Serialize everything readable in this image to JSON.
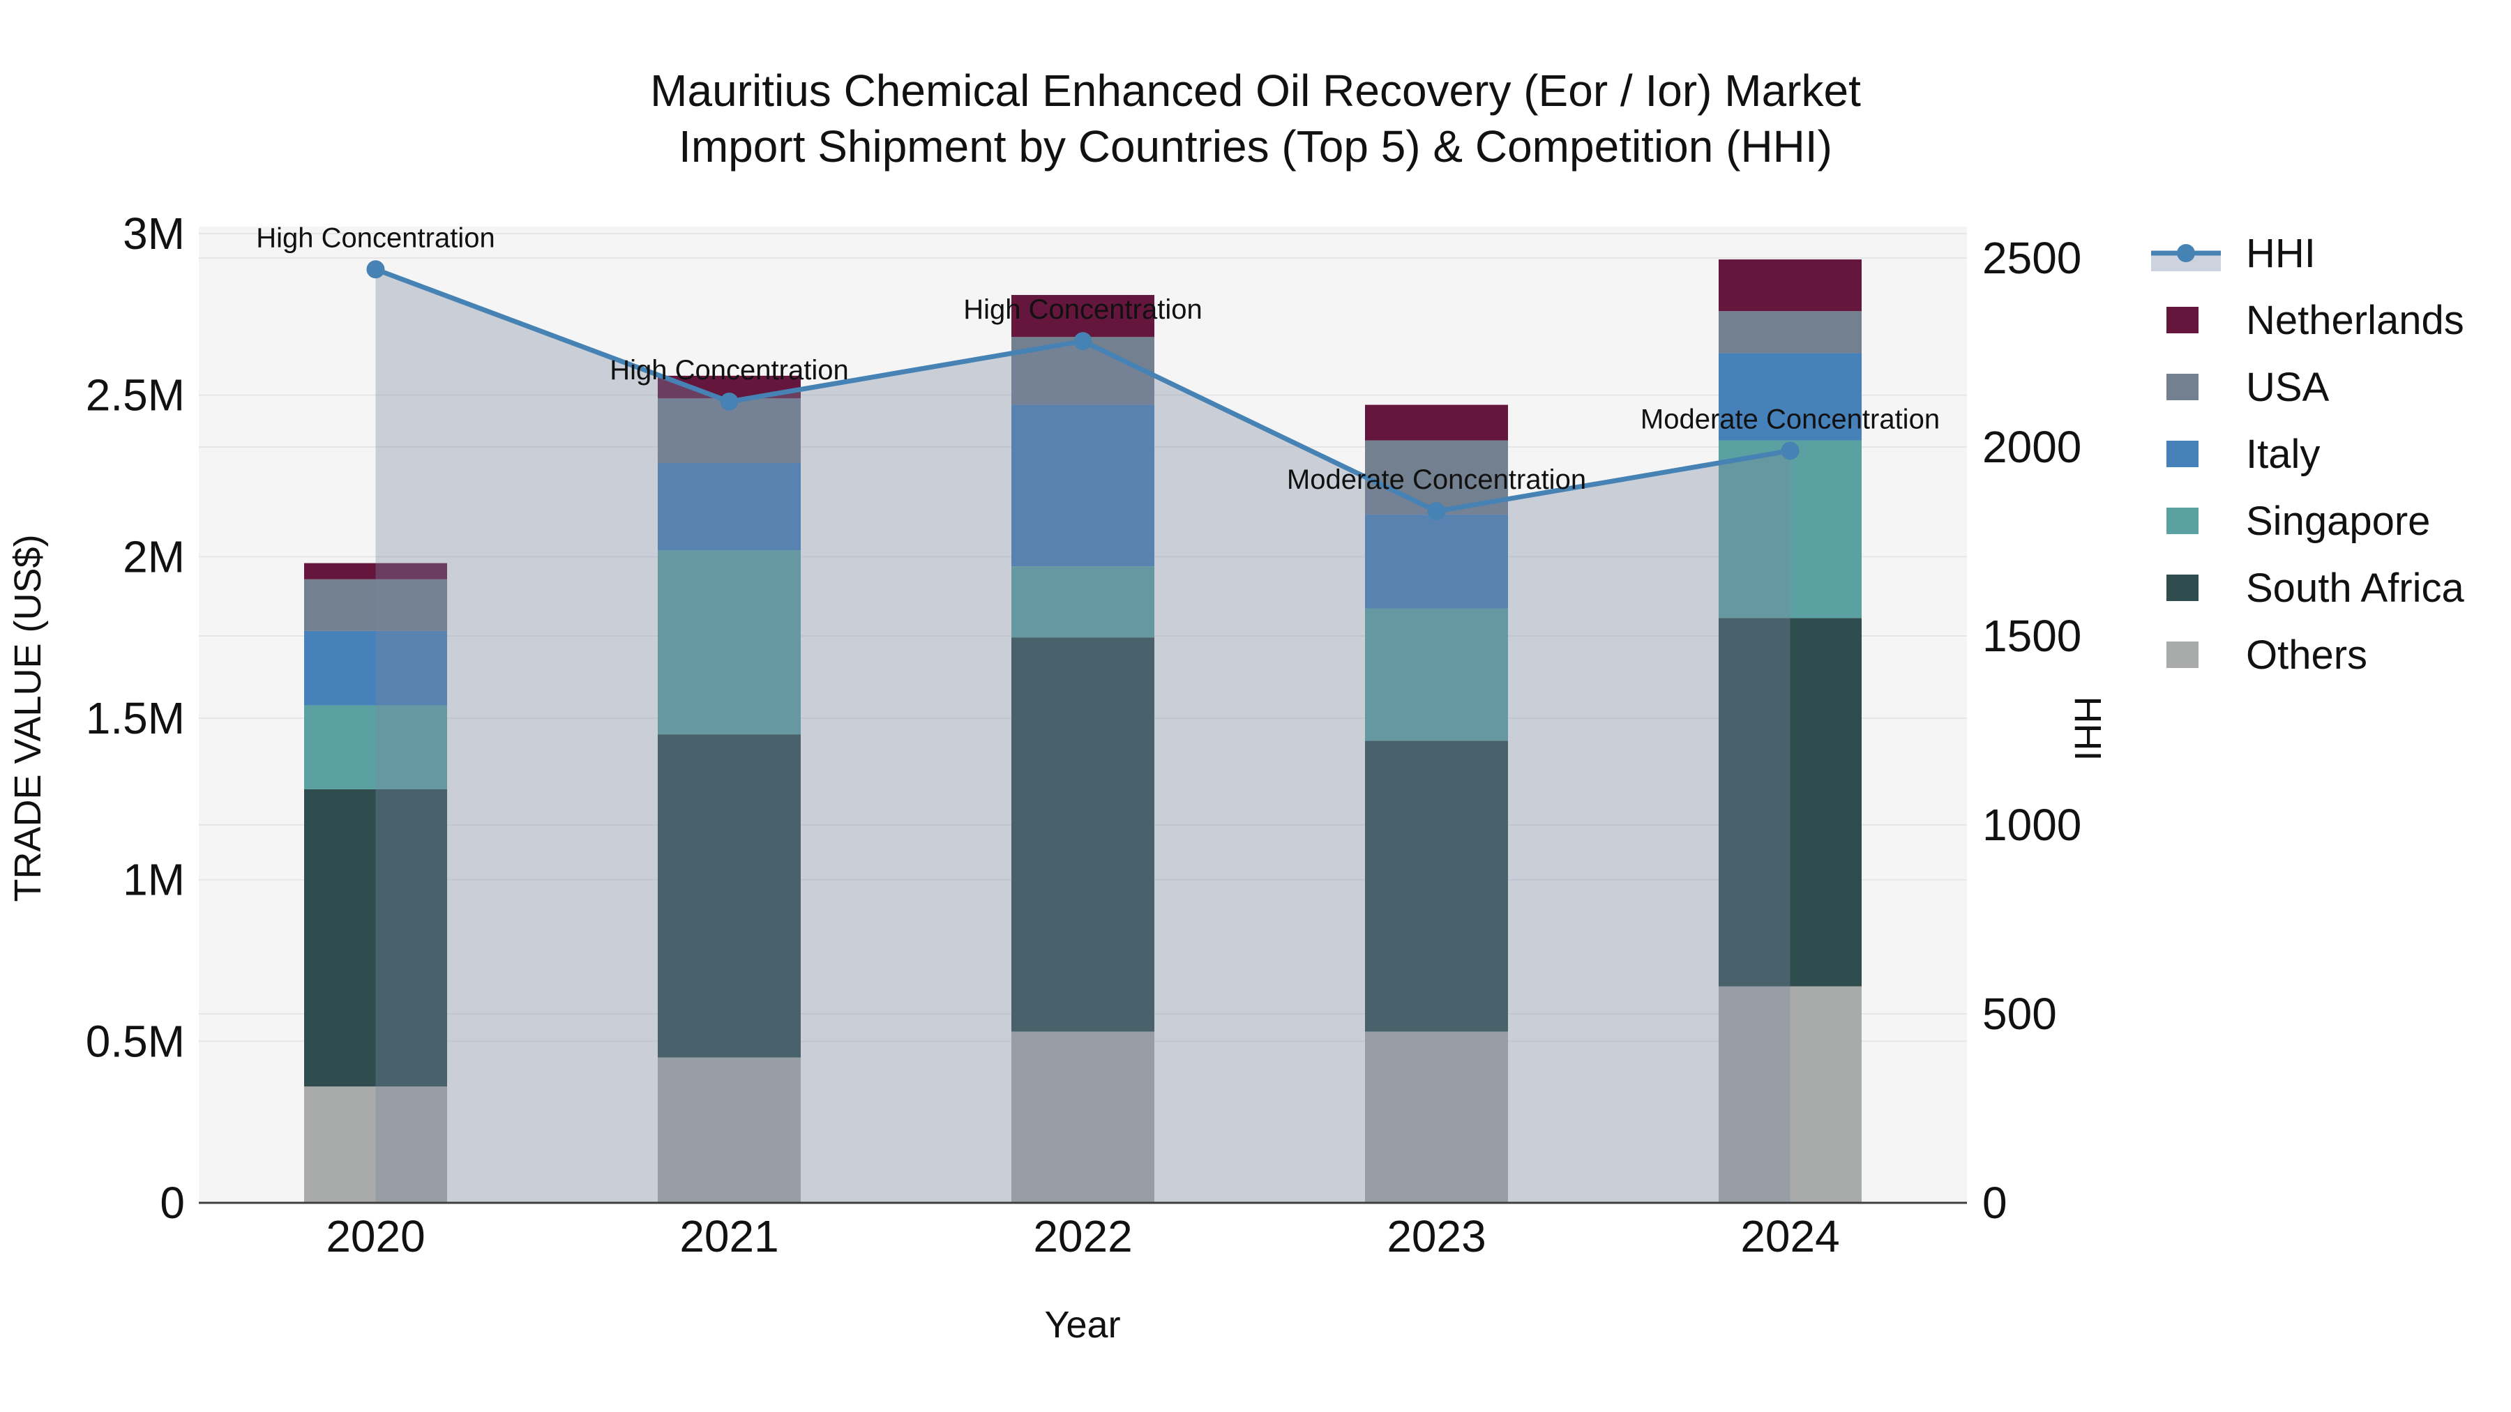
{
  "title": {
    "line1": "Mauritius Chemical Enhanced Oil Recovery (Eor / Ior) Market",
    "line2": "Import Shipment by Countries (Top 5) & Competition (HHI)"
  },
  "axes": {
    "x": {
      "title": "Year",
      "categories": [
        "2020",
        "2021",
        "2022",
        "2023",
        "2024"
      ]
    },
    "y_left": {
      "title": "TRADE VALUE (US$)",
      "tick_labels": [
        "0",
        "0.5M",
        "1M",
        "1.5M",
        "2M",
        "2.5M",
        "3M"
      ],
      "tick_values": [
        0,
        500000,
        1000000,
        1500000,
        2000000,
        2500000,
        3000000
      ]
    },
    "y_right": {
      "title": "HHI",
      "tick_labels": [
        "0",
        "500",
        "1000",
        "1500",
        "2000",
        "2500"
      ],
      "tick_values": [
        0,
        500,
        1000,
        1500,
        2000,
        2500
      ]
    }
  },
  "chart_data": {
    "type": "stacked-bar+line",
    "categories": [
      "2020",
      "2021",
      "2022",
      "2023",
      "2024"
    ],
    "y_left_range": [
      0,
      3000000
    ],
    "y_right_range": [
      0,
      2500
    ],
    "grid": true,
    "legend_position": "right",
    "bar_series": [
      {
        "name": "Others",
        "color": "#A9ABAA",
        "values": [
          360000,
          450000,
          530000,
          530000,
          670000
        ]
      },
      {
        "name": "South Africa",
        "color": "#2F4D4F",
        "values": [
          920000,
          1000000,
          1220000,
          900000,
          1140000
        ]
      },
      {
        "name": "Singapore",
        "color": "#5BA1A1",
        "values": [
          260000,
          570000,
          220000,
          410000,
          550000
        ]
      },
      {
        "name": "Italy",
        "color": "#4781BA",
        "values": [
          230000,
          270000,
          500000,
          290000,
          270000
        ]
      },
      {
        "name": "USA",
        "color": "#73808F",
        "values": [
          160000,
          200000,
          210000,
          230000,
          130000
        ]
      },
      {
        "name": "Netherlands",
        "color": "#64163C",
        "values": [
          50000,
          70000,
          130000,
          110000,
          160000
        ]
      }
    ],
    "line_series": {
      "name": "HHI",
      "axis": "right",
      "color": "#4682B4",
      "area_fill_color": "rgba(120,135,160,0.35)",
      "values": [
        2470,
        2120,
        2280,
        1830,
        1990
      ]
    },
    "annotations": [
      {
        "category": "2020",
        "text": "High Concentration"
      },
      {
        "category": "2021",
        "text": "High Concentration"
      },
      {
        "category": "2022",
        "text": "High Concentration"
      },
      {
        "category": "2023",
        "text": "Moderate Concentration"
      },
      {
        "category": "2024",
        "text": "Moderate Concentration"
      }
    ]
  },
  "legend": {
    "hhi_label": "HHI",
    "hhi_band_color": "#CDD3DE",
    "entries": [
      "HHI",
      "Netherlands",
      "USA",
      "Italy",
      "Singapore",
      "South Africa",
      "Others"
    ]
  },
  "colors": {
    "plot_bg": "#F5F5F5",
    "grid": "#E6E6E7",
    "axis_line": "#3F3F3F",
    "text": "#111111"
  }
}
